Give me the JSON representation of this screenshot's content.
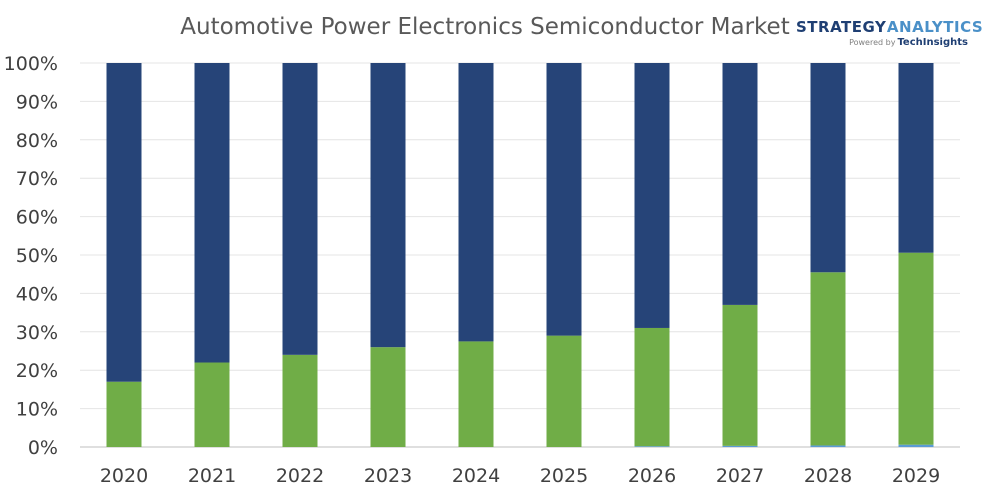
{
  "chart_data": {
    "type": "bar",
    "stacked": true,
    "percent_stacked": true,
    "title": "Automotive Power Electronics Semiconductor Market",
    "categories": [
      "2020",
      "2021",
      "2022",
      "2023",
      "2024",
      "2025",
      "2026",
      "2027",
      "2028",
      "2029"
    ],
    "series": [
      {
        "values": [
          0.0,
          0.0,
          0.0,
          0.0,
          0.0,
          0.0,
          0.2,
          0.3,
          0.4,
          0.6
        ],
        "color": "#5b9bd5"
      },
      {
        "values": [
          17.0,
          22.0,
          24.0,
          26.0,
          27.5,
          29.0,
          30.8,
          36.7,
          45.1,
          50.0
        ],
        "color": "#70ad47"
      },
      {
        "values": [
          83.0,
          78.0,
          76.0,
          74.0,
          72.5,
          71.0,
          69.0,
          63.0,
          54.5,
          49.4
        ],
        "color": "#264478"
      }
    ],
    "y_ticks": [
      "0%",
      "10%",
      "20%",
      "30%",
      "40%",
      "50%",
      "60%",
      "70%",
      "80%",
      "90%",
      "100%"
    ],
    "ylim": [
      0,
      100
    ],
    "grid": true,
    "legend": "none"
  },
  "logo": {
    "word1": "STRATEGY",
    "word2": "ANALYTICS",
    "powered_by": "Powered by",
    "brand": "TechInsights",
    "color1": "#1f3f73",
    "color2": "#4a90c8"
  }
}
